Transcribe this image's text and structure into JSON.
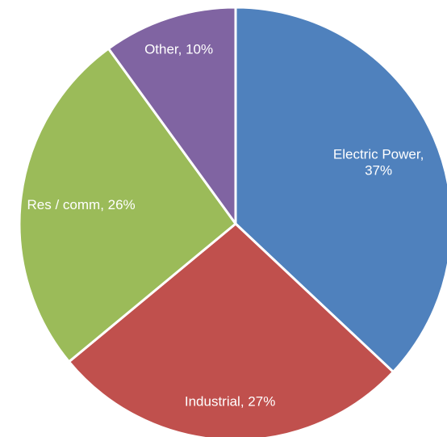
{
  "chart_data": {
    "type": "pie",
    "title": "",
    "start_angle_deg": 0,
    "direction": "clockwise",
    "slices": [
      {
        "name": "Electric Power",
        "value": 37,
        "label_lines": [
          "Electric Power,",
          "37%"
        ],
        "color": "#4f81bd"
      },
      {
        "name": "Industrial",
        "value": 27,
        "label_lines": [
          "Industrial, 27%"
        ],
        "color": "#c0504d"
      },
      {
        "name": "Res / comm",
        "value": 26,
        "label_lines": [
          "Res / comm, 26%"
        ],
        "color": "#9bbb59"
      },
      {
        "name": "Other",
        "value": 10,
        "label_lines": [
          "Other, 10%"
        ],
        "color": "#8064a2"
      }
    ],
    "legend": "none",
    "label_position": "inside"
  }
}
